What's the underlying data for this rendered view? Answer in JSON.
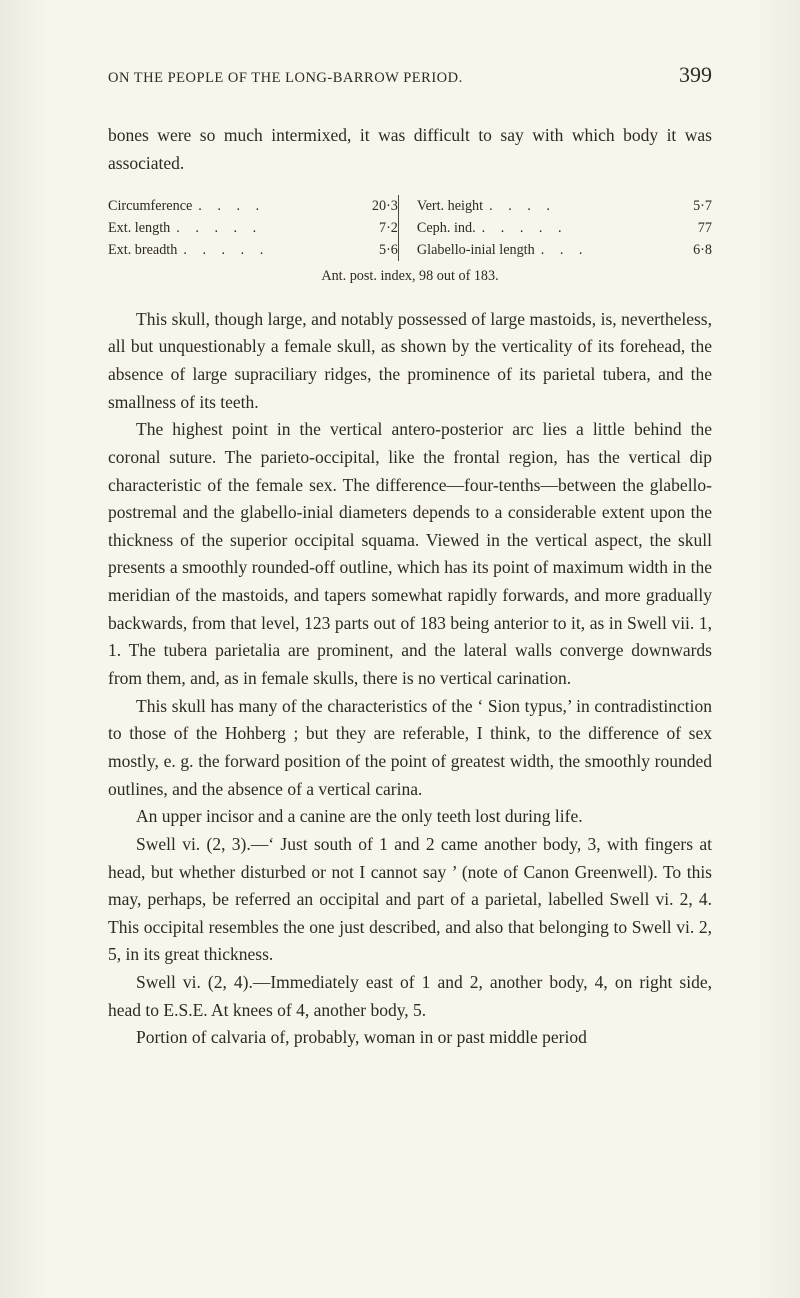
{
  "page": {
    "running_title": "ON THE PEOPLE OF THE LONG-BARROW PERIOD.",
    "page_number": "399",
    "background_color": "#f8f5ea",
    "text_color": "#2c2a24",
    "body_fontsize_pt": 13,
    "small_fontsize_pt": 10.5
  },
  "lead_para": "bones were so much intermixed, it was difficult to say with which body it was associated.",
  "measurements": {
    "rows": [
      {
        "left_label": "Circumference",
        "left_value": "20·3",
        "right_label": "Vert. height",
        "right_value": "5·7"
      },
      {
        "left_label": "Ext. length",
        "left_value": "7·2",
        "right_label": "Ceph. ind.",
        "right_value": "77"
      },
      {
        "left_label": "Ext. breadth",
        "left_value": "5·6",
        "right_label": "Glabello-inial length",
        "right_value": "6·8"
      }
    ],
    "note": "Ant. post. index, 98 out of 183."
  },
  "paragraphs": [
    "This skull, though large, and notably possessed of large mastoids, is, nevertheless, all but unquestionably a female skull, as shown by the verticality of its forehead, the absence of large supraciliary ridges, the prominence of its parietal tubera, and the smallness of its teeth.",
    "The highest point in the vertical antero-posterior arc lies a little behind the coronal suture. The parieto-occipital, like the frontal region, has the vertical dip characteristic of the female sex. The difference—four-tenths—between the glabello-postremal and the glabello-inial diameters depends to a considerable extent upon the thickness of the superior occipital squama. Viewed in the vertical aspect, the skull presents a smoothly rounded-off outline, which has its point of maximum width in the meridian of the mastoids, and tapers somewhat rapidly forwards, and more gradually backwards, from that level, 123 parts out of 183 being anterior to it, as in Swell vii. 1, 1. The tubera parietalia are prominent, and the lateral walls converge downwards from them, and, as in female skulls, there is no vertical carination.",
    "This skull has many of the characteristics of the ‘ Sion typus,’ in contradistinction to those of the Hohberg ; but they are referable, I think, to the difference of sex mostly, e. g. the forward position of the point of greatest width, the smoothly rounded outlines, and the absence of a vertical carina.",
    "An upper incisor and a canine are the only teeth lost during life.",
    "Swell vi. (2, 3).—‘ Just south of 1 and 2 came another body, 3, with fingers at head, but whether disturbed or not I cannot say ’ (note of Canon Greenwell). To this may, perhaps, be referred an occipital and part of a parietal, labelled Swell vi. 2, 4. This occipital resembles the one just described, and also that belonging to Swell vi. 2, 5, in its great thickness.",
    "Swell vi. (2, 4).—Immediately east of 1 and 2, another body, 4, on right side, head to E.S.E. At knees of 4, another body, 5.",
    "Portion of calvaria of, probably, woman in or past middle period"
  ]
}
